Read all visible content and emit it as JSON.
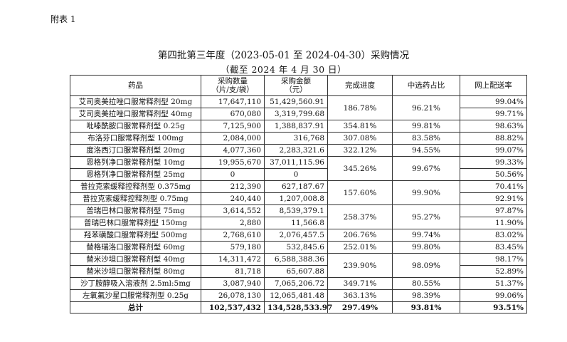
{
  "attachment_label": "附表 1",
  "title": "第四批第三年度（2023-05-01 至 2024-04-30）采购情况",
  "subtitle": "（截至 2024 年 4 月 30 日）",
  "headers": {
    "drug": "药品",
    "quantity": "采购数量",
    "quantity_unit": "（片/支/袋）",
    "amount": "采购金额",
    "amount_unit": "（元）",
    "progress": "完成进度",
    "share": "中选药占比",
    "delivery": "网上配送率"
  },
  "rows": [
    {
      "drug": "艾司奥美拉唑口服常释剂型 20mg",
      "quantity": "17,647,110",
      "amount": "51,429,560.91",
      "progress": "186.78%",
      "share": "96.21%",
      "delivery": "99.04%"
    },
    {
      "drug": "艾司奥美拉唑口服常释剂型 40mg",
      "quantity": "670,080",
      "amount": "3,319,799.68",
      "delivery": "99.71%"
    },
    {
      "drug": "吡嗪酰胺口服常释剂型 0.25g",
      "quantity": "7,125,900",
      "amount": "1,388,837.91",
      "progress": "354.81%",
      "share": "99.81%",
      "delivery": "98.63%"
    },
    {
      "drug": "布洛芬口服常释剂型 100mg",
      "quantity": "2,084,000",
      "amount": "316,768",
      "progress": "307.08%",
      "share": "83.58%",
      "delivery": "88.82%"
    },
    {
      "drug": "度洛西汀口服常释剂型 20mg",
      "quantity": "4,077,360",
      "amount": "2,283,321.6",
      "progress": "322.12%",
      "share": "94.55%",
      "delivery": "99.07%"
    },
    {
      "drug": "恩格列净口服常释剂型 10mg",
      "quantity": "19,955,670",
      "amount": "37,011,115.96",
      "progress": "345.26%",
      "share": "99.67%",
      "delivery": "99.33%"
    },
    {
      "drug": "恩格列净口服常释剂型 25mg",
      "quantity": "0",
      "amount": "0",
      "delivery": "50.56%"
    },
    {
      "drug": "普拉克索缓释控释剂型 0.375mg",
      "quantity": "212,390",
      "amount": "627,187.67",
      "progress": "157.60%",
      "share": "99.90%",
      "delivery": "70.41%"
    },
    {
      "drug": "普拉克索缓释控释剂型 0.75mg",
      "quantity": "240,440",
      "amount": "1,207,008.8",
      "delivery": "92.91%"
    },
    {
      "drug": "普瑞巴林口服常释剂型 75mg",
      "quantity": "3,614,552",
      "amount": "8,539,379.1",
      "progress": "258.37%",
      "share": "95.27%",
      "delivery": "97.87%"
    },
    {
      "drug": "普瑞巴林口服常释剂型 150mg",
      "quantity": "2,880",
      "amount": "11,566.8",
      "delivery": "11.90%"
    },
    {
      "drug": "羟苯磺酸口服常释剂型 500mg",
      "quantity": "2,768,610",
      "amount": "2,076,457.5",
      "progress": "206.76%",
      "share": "99.74%",
      "delivery": "83.02%"
    },
    {
      "drug": "替格瑞洛口服常释剂型 60mg",
      "quantity": "579,180",
      "amount": "532,845.6",
      "progress": "252.01%",
      "share": "99.80%",
      "delivery": "83.45%"
    },
    {
      "drug": "替米沙坦口服常释剂型 40mg",
      "quantity": "14,311,472",
      "amount": "6,588,388.36",
      "progress": "239.90%",
      "share": "98.09%",
      "delivery": "98.17%"
    },
    {
      "drug": "替米沙坦口服常释剂型 80mg",
      "quantity": "81,718",
      "amount": "65,607.88",
      "delivery": "52.89%"
    },
    {
      "drug": "沙丁胺醇吸入溶液剂 2.5ml:5mg",
      "quantity": "3,087,940",
      "amount": "7,065,206.72",
      "progress": "349.71%",
      "share": "80.55%",
      "delivery": "51.37%"
    },
    {
      "drug": "左氧氟沙星口服常释剂型 0.25g",
      "quantity": "26,078,130",
      "amount": "12,065,481.48",
      "progress": "363.13%",
      "share": "98.39%",
      "delivery": "99.06%"
    }
  ],
  "total": {
    "label": "总计",
    "quantity": "102,537,432",
    "amount": "134,528,533.97",
    "progress": "297.49%",
    "share": "93.81%",
    "delivery": "93.51%"
  }
}
